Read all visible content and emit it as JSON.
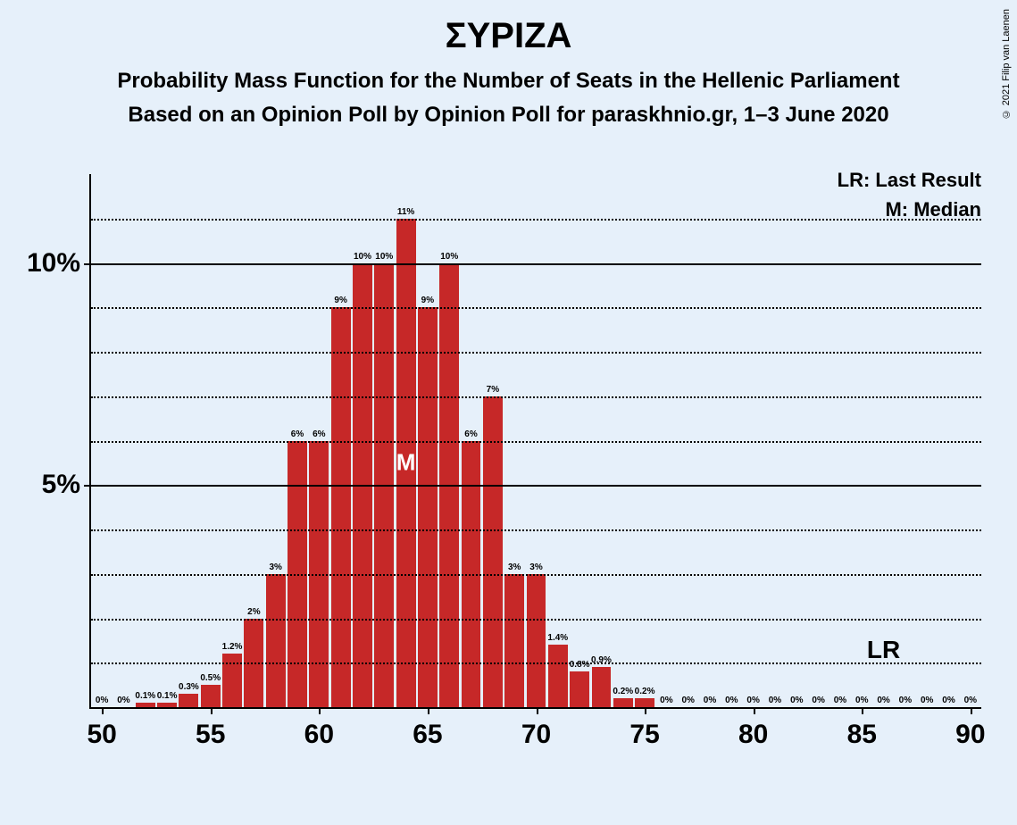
{
  "title": "ΣΥΡΙΖΑ",
  "subtitle1": "Probability Mass Function for the Number of Seats in the Hellenic Parliament",
  "subtitle2": "Based on an Opinion Poll by Opinion Poll for paraskhnio.gr, 1–3 June 2020",
  "copyright": "© 2021 Filip van Laenen",
  "legend": {
    "lr": "LR: Last Result",
    "m": "M: Median"
  },
  "chart": {
    "type": "bar",
    "background_color": "#e6f0fa",
    "bar_color": "#c62828",
    "axis_color": "#000000",
    "grid_major_color": "#000000",
    "grid_minor_color": "#000000",
    "x_min": 49.5,
    "x_max": 90.5,
    "y_max": 12,
    "y_major": [
      5,
      10
    ],
    "y_minor": [
      1,
      2,
      3,
      4,
      6,
      7,
      8,
      9,
      11
    ],
    "x_ticks": [
      50,
      55,
      60,
      65,
      70,
      75,
      80,
      85,
      90
    ],
    "bar_width": 0.9,
    "median_x": 64,
    "median_label": "M",
    "lr_x": 86,
    "lr_label": "LR",
    "bars": [
      {
        "x": 50,
        "y": 0,
        "label": "0%"
      },
      {
        "x": 51,
        "y": 0,
        "label": "0%"
      },
      {
        "x": 52,
        "y": 0.1,
        "label": "0.1%"
      },
      {
        "x": 53,
        "y": 0.1,
        "label": "0.1%"
      },
      {
        "x": 54,
        "y": 0.3,
        "label": "0.3%"
      },
      {
        "x": 55,
        "y": 0.5,
        "label": "0.5%"
      },
      {
        "x": 56,
        "y": 1.2,
        "label": "1.2%"
      },
      {
        "x": 57,
        "y": 2,
        "label": "2%"
      },
      {
        "x": 58,
        "y": 3,
        "label": "3%"
      },
      {
        "x": 59,
        "y": 6,
        "label": "6%"
      },
      {
        "x": 60,
        "y": 6,
        "label": "6%"
      },
      {
        "x": 61,
        "y": 9,
        "label": "9%"
      },
      {
        "x": 62,
        "y": 10,
        "label": "10%"
      },
      {
        "x": 63,
        "y": 10,
        "label": "10%"
      },
      {
        "x": 64,
        "y": 11,
        "label": "11%"
      },
      {
        "x": 65,
        "y": 9,
        "label": "9%"
      },
      {
        "x": 66,
        "y": 10,
        "label": "10%"
      },
      {
        "x": 67,
        "y": 6,
        "label": "6%"
      },
      {
        "x": 68,
        "y": 7,
        "label": "7%"
      },
      {
        "x": 69,
        "y": 3,
        "label": "3%"
      },
      {
        "x": 70,
        "y": 3,
        "label": "3%"
      },
      {
        "x": 71,
        "y": 1.4,
        "label": "1.4%"
      },
      {
        "x": 72,
        "y": 0.8,
        "label": "0.8%"
      },
      {
        "x": 73,
        "y": 0.9,
        "label": "0.9%"
      },
      {
        "x": 74,
        "y": 0.2,
        "label": "0.2%"
      },
      {
        "x": 75,
        "y": 0.2,
        "label": "0.2%"
      },
      {
        "x": 76,
        "y": 0,
        "label": "0%"
      },
      {
        "x": 77,
        "y": 0,
        "label": "0%"
      },
      {
        "x": 78,
        "y": 0,
        "label": "0%"
      },
      {
        "x": 79,
        "y": 0,
        "label": "0%"
      },
      {
        "x": 80,
        "y": 0,
        "label": "0%"
      },
      {
        "x": 81,
        "y": 0,
        "label": "0%"
      },
      {
        "x": 82,
        "y": 0,
        "label": "0%"
      },
      {
        "x": 83,
        "y": 0,
        "label": "0%"
      },
      {
        "x": 84,
        "y": 0,
        "label": "0%"
      },
      {
        "x": 85,
        "y": 0,
        "label": "0%"
      },
      {
        "x": 86,
        "y": 0,
        "label": "0%"
      },
      {
        "x": 87,
        "y": 0,
        "label": "0%"
      },
      {
        "x": 88,
        "y": 0,
        "label": "0%"
      },
      {
        "x": 89,
        "y": 0,
        "label": "0%"
      },
      {
        "x": 90,
        "y": 0,
        "label": "0%"
      }
    ]
  }
}
